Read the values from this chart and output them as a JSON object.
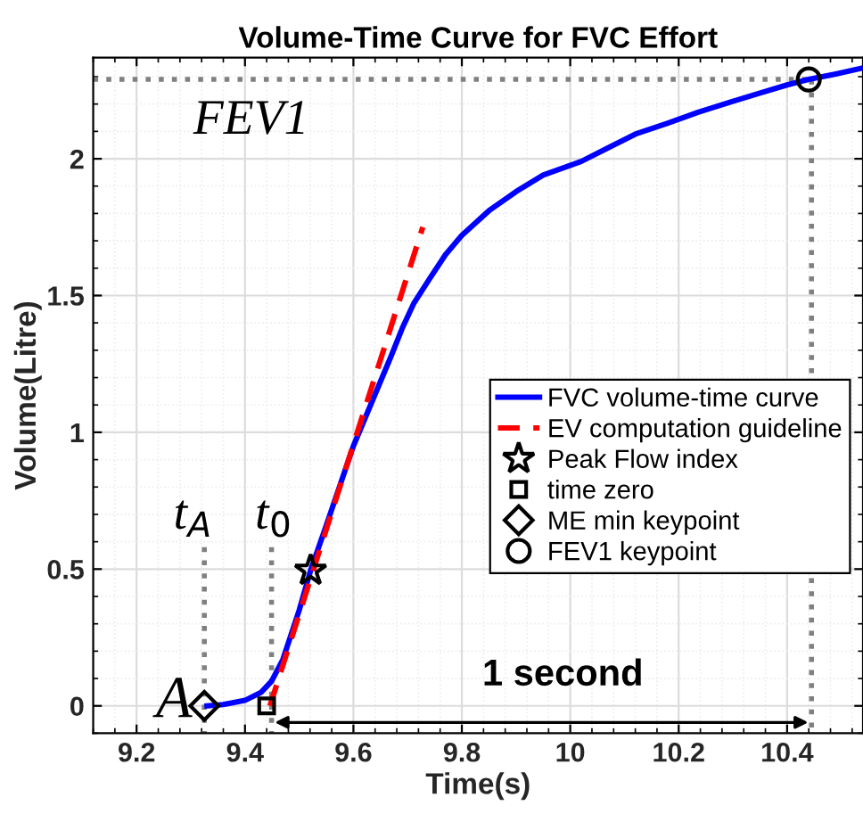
{
  "chart_data": {
    "type": "line",
    "title": "Volume-Time Curve for FVC Effort",
    "xlabel": "Time(s)",
    "ylabel": "Volume(Litre)",
    "xlim": [
      9.12,
      10.54
    ],
    "ylim": [
      -0.1,
      2.37
    ],
    "xticks": [
      9.2,
      9.4,
      9.6,
      9.8,
      10,
      10.2,
      10.4
    ],
    "yticks": [
      0,
      0.5,
      1,
      1.5,
      2
    ],
    "grid": true,
    "legend": "right",
    "series": [
      {
        "name": "FVC volume-time curve",
        "color": "#0000ff",
        "line_style": "solid",
        "x": [
          9.33,
          9.36,
          9.4,
          9.43,
          9.449,
          9.47,
          9.5,
          9.521,
          9.55,
          9.6,
          9.669,
          9.69,
          9.711,
          9.74,
          9.77,
          9.8,
          9.85,
          9.9,
          9.95,
          10.02,
          10.07,
          10.12,
          10.18,
          10.236,
          10.3,
          10.35,
          10.4,
          10.44,
          10.49,
          10.535
        ],
        "values": [
          0.0,
          0.005,
          0.02,
          0.05,
          0.09,
          0.17,
          0.35,
          0.495,
          0.66,
          0.95,
          1.276,
          1.38,
          1.47,
          1.56,
          1.65,
          1.72,
          1.81,
          1.88,
          1.94,
          1.99,
          2.04,
          2.09,
          2.13,
          2.17,
          2.21,
          2.24,
          2.27,
          2.29,
          2.31,
          2.33
        ]
      },
      {
        "name": "EV computation guideline",
        "color": "#ff0000",
        "line_style": "dashed",
        "x": [
          9.446,
          9.728
        ],
        "values": [
          0.0,
          1.75
        ]
      },
      {
        "name": "Peak Flow index",
        "type": "scatter",
        "color": "#000000",
        "marker": "star",
        "x": [
          9.521
        ],
        "values": [
          0.495
        ]
      },
      {
        "name": "time zero",
        "type": "scatter",
        "color": "#000000",
        "marker": "square",
        "x": [
          9.44
        ],
        "values": [
          0.0
        ]
      },
      {
        "name": "ME min keypoint",
        "type": "scatter",
        "color": "#000000",
        "marker": "diamond",
        "x": [
          9.325
        ],
        "values": [
          0.0
        ]
      },
      {
        "name": "FEV1 keypoint",
        "type": "scatter",
        "color": "#000000",
        "marker": "circle",
        "x": [
          10.44
        ],
        "values": [
          2.29
        ]
      },
      {
        "color": "#808080",
        "line_style": "dotted",
        "x": [
          9.12,
          10.44
        ],
        "values": [
          2.29,
          2.29
        ]
      },
      {
        "color": "#808080",
        "line_style": "dotted",
        "x": [
          10.445,
          10.445
        ],
        "values": [
          2.29,
          -0.1
        ]
      },
      {
        "color": "#808080",
        "line_style": "dotted",
        "x": [
          9.325,
          9.325
        ],
        "values": [
          0.58,
          -0.1
        ]
      },
      {
        "color": "#808080",
        "line_style": "dotted",
        "x": [
          9.449,
          9.449
        ],
        "values": [
          0.58,
          -0.1
        ]
      }
    ],
    "annotations": [
      "FEV1",
      "t$_{A}$",
      "t$_{0}$",
      "A",
      "1 second"
    ]
  }
}
